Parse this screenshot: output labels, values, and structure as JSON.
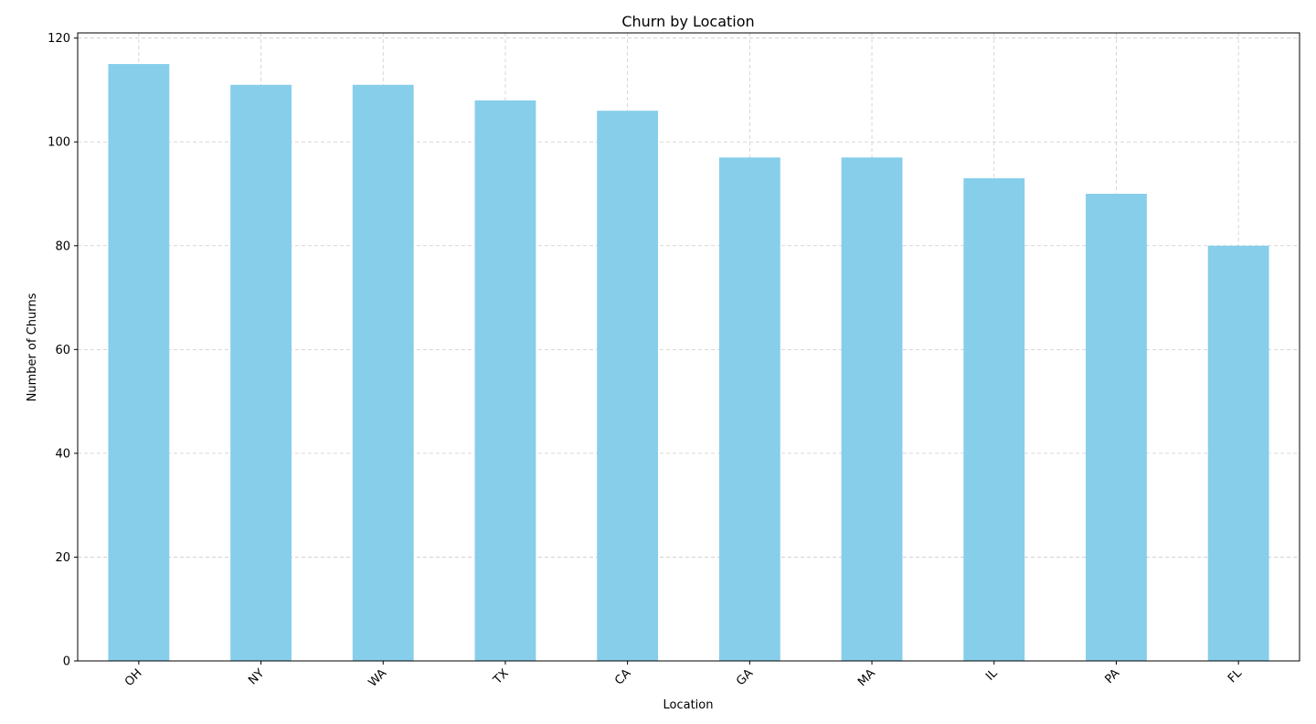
{
  "chart_data": {
    "type": "bar",
    "title": "Churn by Location",
    "xlabel": "Location",
    "ylabel": "Number of Churns",
    "categories": [
      "OH",
      "NY",
      "WA",
      "TX",
      "CA",
      "GA",
      "MA",
      "IL",
      "PA",
      "FL"
    ],
    "values": [
      115,
      111,
      111,
      108,
      106,
      97,
      97,
      93,
      90,
      80
    ],
    "ylim": [
      0,
      121
    ],
    "yticks": [
      0,
      20,
      40,
      60,
      80,
      100,
      120
    ],
    "grid": true,
    "grid_style": "dashed",
    "x_tick_rotation_deg": 45,
    "colors": {
      "bar": "#87ceeb",
      "grid": "#cccccc",
      "axes": "#000000"
    }
  }
}
